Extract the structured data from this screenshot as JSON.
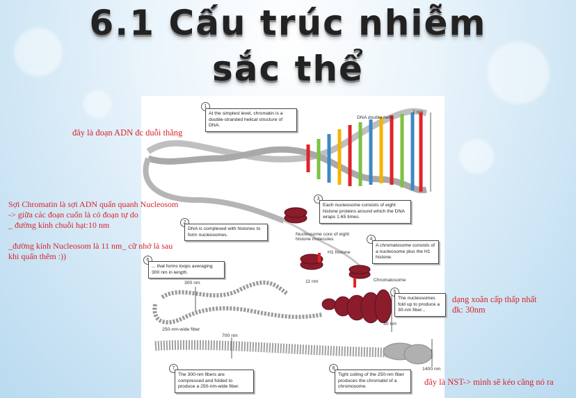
{
  "slide": {
    "title_line1": "6.1 Cấu trúc nhiễm",
    "title_line2": "sắc thể"
  },
  "notes": {
    "adn_straight": "đây là đoạn ADN đc duỗi thẳng",
    "chromatin": "Sợi Chromatin là sợi ADN quấn quanh Nucleosom\n-> giữa các đoạn cuốn là có đoạn tự do\n_ đường kính chuỗi hạt:10 nm\n\n_đường kính Nucleosom là 11 nm_ cữ nhớ là sau\nkhi quấn thêm :))",
    "lowest_coil": "dạng xoắn cấp thấp nhất\nđk: 30nm",
    "nst": "đây là NST-> mình sẽ kéo căng nó ra"
  },
  "figure": {
    "callouts": [
      {
        "num": "1",
        "text": "At the simplest level, chromatin is a double-stranded helical structure of DNA."
      },
      {
        "num": "2",
        "text": "DNA is complexed with histones to form nucleosomes."
      },
      {
        "num": "3",
        "text": "Each nucleosome consists of eight histone proteins around which the DNA wraps 1.65 times."
      },
      {
        "num": "4",
        "text": "A chromatosome consists of a nucleosome plus the H1 histone."
      },
      {
        "num": "5",
        "text": "The nucleosomes fold up to produce a 30-nm fiber..."
      },
      {
        "num": "6",
        "text": "... that forms loops averaging 300 nm in length."
      },
      {
        "num": "7",
        "text": "The 300-nm fibers are compressed and folded to produce a 250-nm-wide fiber."
      },
      {
        "num": "8",
        "text": "Tight coiling of the 250-nm fiber produces the chromatid of a chromosome."
      }
    ],
    "labels": {
      "dna_double_helix": "DNA double helix",
      "two_nm": "2 nm",
      "nucleosome_core": "Nucleosome core of eight histone molecules",
      "h1_histone": "H1 histone",
      "eleven_nm": "11 nm",
      "chromatosome": "Chromatosome",
      "three_hundred_nm": "300 nm",
      "thirty_nm": "30 nm",
      "fiber_250": "250-nm-wide fiber",
      "seven_hundred_nm": "700 nm",
      "fourteen_hundred_nm": "1400 nm"
    }
  },
  "colors": {
    "note_red": "#d8232a",
    "nucleosome": "#8a1c2b"
  }
}
